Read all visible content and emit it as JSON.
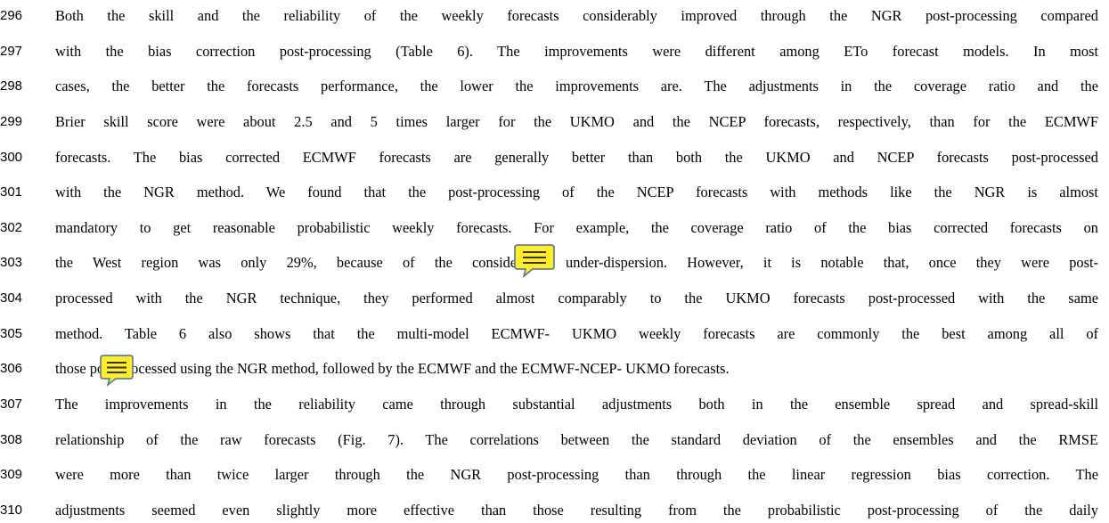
{
  "lines": [
    {
      "number": "296",
      "text": "Both the skill and the reliability of the weekly forecasts considerably improved through the NGR post-processing compared"
    },
    {
      "number": "297",
      "text": "with the bias correction post-processing (Table 6). The improvements were different among ETo forecast models. In most"
    },
    {
      "number": "298",
      "text": "cases, the better the forecasts performance, the lower the improvements are. The adjustments in the coverage ratio and the"
    },
    {
      "number": "299",
      "text": "Brier skill score were about 2.5 and 5 times larger for the  UKMO and the NCEP forecasts, respectively, than for the ECMWF"
    },
    {
      "number": "300",
      "text": "forecasts. The bias corrected ECMWF forecasts are generally better than both the  UKMO and NCEP forecasts post-processed"
    },
    {
      "number": "301",
      "text": "with the NGR method. We found that the post-processing of the NCEP forecasts with methods like the NGR is almost"
    },
    {
      "number": "302",
      "text": "mandatory to get reasonable probabilistic weekly forecasts. For example, the coverage ratio of the bias corrected forecasts on"
    },
    {
      "number": "303",
      "text": "the West region was only 29%, because of the considerable under-dispersion. However, it is notable that, once they were post-"
    },
    {
      "number": "304",
      "text": "processed with the NGR technique, they performed almost comparably to the  UKMO forecasts post-processed with the same"
    },
    {
      "number": "305",
      "text": "method. Table 6 also shows that the multi-model ECMWF- UKMO weekly forecasts are commonly the best among all of"
    },
    {
      "number": "306",
      "text": "those post-processed using the NGR method, followed by the ECMWF and the ECMWF-NCEP- UKMO forecasts."
    },
    {
      "number": "307",
      "text": "The improvements in the reliability came through substantial adjustments both in the ensemble spread and spread-skill"
    },
    {
      "number": "308",
      "text": "relationship of the raw forecasts (Fig. 7). The correlations between the standard deviation of the ensembles and the RMSE"
    },
    {
      "number": "309",
      "text": "were more than twice larger through the NGR post-processing than through the linear regression bias correction. The"
    },
    {
      "number": "310",
      "text": "adjustments seemed even slightly more effective than those resulting from the probabilistic post-processing of the daily"
    }
  ]
}
